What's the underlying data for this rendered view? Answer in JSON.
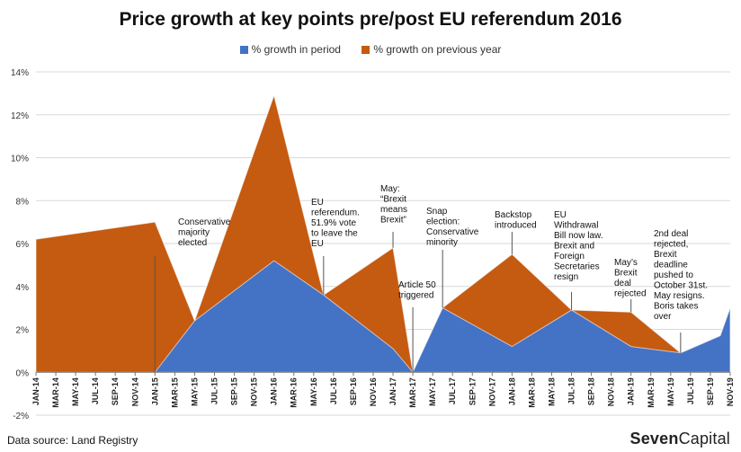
{
  "title": "Price growth at key points pre/post EU referendum 2016",
  "legend": {
    "series1": "% growth in period",
    "series2": "% growth on previous year"
  },
  "source": "Data source: Land Registry",
  "brand": {
    "part1": "Seven",
    "part2": "Capital"
  },
  "colors": {
    "period": "#4472C4",
    "annual": "#C55A11",
    "axis": "#888888",
    "grid": "#D9D9D9"
  },
  "chart_data": {
    "type": "area",
    "title": "Price growth at key points pre/post EU referendum 2016",
    "ylim": [
      -2,
      14
    ],
    "ytick_values": [
      -2,
      0,
      2,
      4,
      6,
      8,
      10,
      12,
      14
    ],
    "ytick_labels": [
      "-2%",
      "0%",
      "2%",
      "4%",
      "6%",
      "8%",
      "10%",
      "12%",
      "14%"
    ],
    "grid": true,
    "legend_position": "top",
    "categories": [
      "JAN-14",
      "MAR-14",
      "MAY-14",
      "JUL-14",
      "SEP-14",
      "NOV-14",
      "JAN-15",
      "MAR-15",
      "MAY-15",
      "JUL-15",
      "SEP-15",
      "NOV-15",
      "JAN-16",
      "MAR-16",
      "MAY-16",
      "JUL-16",
      "SEP-16",
      "NOV-16",
      "JAN-17",
      "MAR-17",
      "MAY-17",
      "JUL-17",
      "SEP-17",
      "NOV-17",
      "JAN-18",
      "MAR-18",
      "MAY-18",
      "JUL-18",
      "SEP-18",
      "NOV-18",
      "JAN-19",
      "MAR-19",
      "MAY-19",
      "JUL-19",
      "SEP-19",
      "NOV-19"
    ],
    "series": [
      {
        "name": "% growth in period",
        "points": [
          [
            "JAN-15",
            0.0
          ],
          [
            "MAY-15",
            2.4
          ],
          [
            "JAN-16",
            5.2
          ],
          [
            "JUN-16",
            3.6
          ],
          [
            "JAN-17",
            1.1
          ],
          [
            "MAR-17",
            0.0
          ],
          [
            "JUN-17",
            3.0
          ],
          [
            "JAN-18",
            1.2
          ],
          [
            "JUL-18",
            2.9
          ],
          [
            "JAN-19",
            1.2
          ],
          [
            "JUN-19",
            0.9
          ],
          [
            "OCT-19",
            1.7
          ],
          [
            "NOV-19",
            3.0
          ]
        ]
      },
      {
        "name": "% growth on previous year",
        "points": [
          [
            "JAN-14",
            6.2
          ],
          [
            "JAN-15",
            7.0
          ],
          [
            "MAY-15",
            2.4
          ],
          [
            "JAN-16",
            12.9
          ],
          [
            "JUN-16",
            3.6
          ],
          [
            "JAN-17",
            5.8
          ],
          [
            "MAR-17",
            0.0
          ],
          [
            "JUN-17",
            3.0
          ],
          [
            "JAN-18",
            5.5
          ],
          [
            "JUL-18",
            2.9
          ],
          [
            "JAN-19",
            2.8
          ],
          [
            "JUN-19",
            0.9
          ],
          [
            "OCT-19",
            1.7
          ],
          [
            "NOV-19",
            3.0
          ]
        ]
      }
    ],
    "annotations": [
      {
        "at": "JAN-15",
        "lines": [
          "Conservative",
          "majority",
          "elected"
        ]
      },
      {
        "at": "JUN-16",
        "lines": [
          "EU",
          "referendum.",
          "51.9% vote",
          "to leave the",
          "EU"
        ]
      },
      {
        "at": "JAN-17",
        "lines": [
          "May:",
          "“Brexit",
          "means",
          "Brexit”"
        ]
      },
      {
        "at": "MAR-17",
        "lines": [
          "Article 50",
          "triggered"
        ]
      },
      {
        "at": "JUN-17",
        "lines": [
          "Snap",
          "election:",
          "Conservative",
          "minority"
        ]
      },
      {
        "at": "JAN-18",
        "lines": [
          "Backstop",
          "introduced"
        ]
      },
      {
        "at": "JUL-18",
        "lines": [
          "EU",
          "Withdrawal",
          "Bill now law.",
          "Brexit and",
          "Foreign",
          "Secretaries",
          "resign"
        ]
      },
      {
        "at": "JAN-19",
        "lines": [
          "May’s",
          "Brexit",
          "deal",
          "rejected"
        ]
      },
      {
        "at": "JUN-19",
        "lines": [
          "2nd deal",
          "rejected,",
          "Brexit",
          "deadline",
          "pushed to",
          "October 31st.",
          "May resigns.",
          "Boris takes",
          "over"
        ]
      }
    ]
  }
}
